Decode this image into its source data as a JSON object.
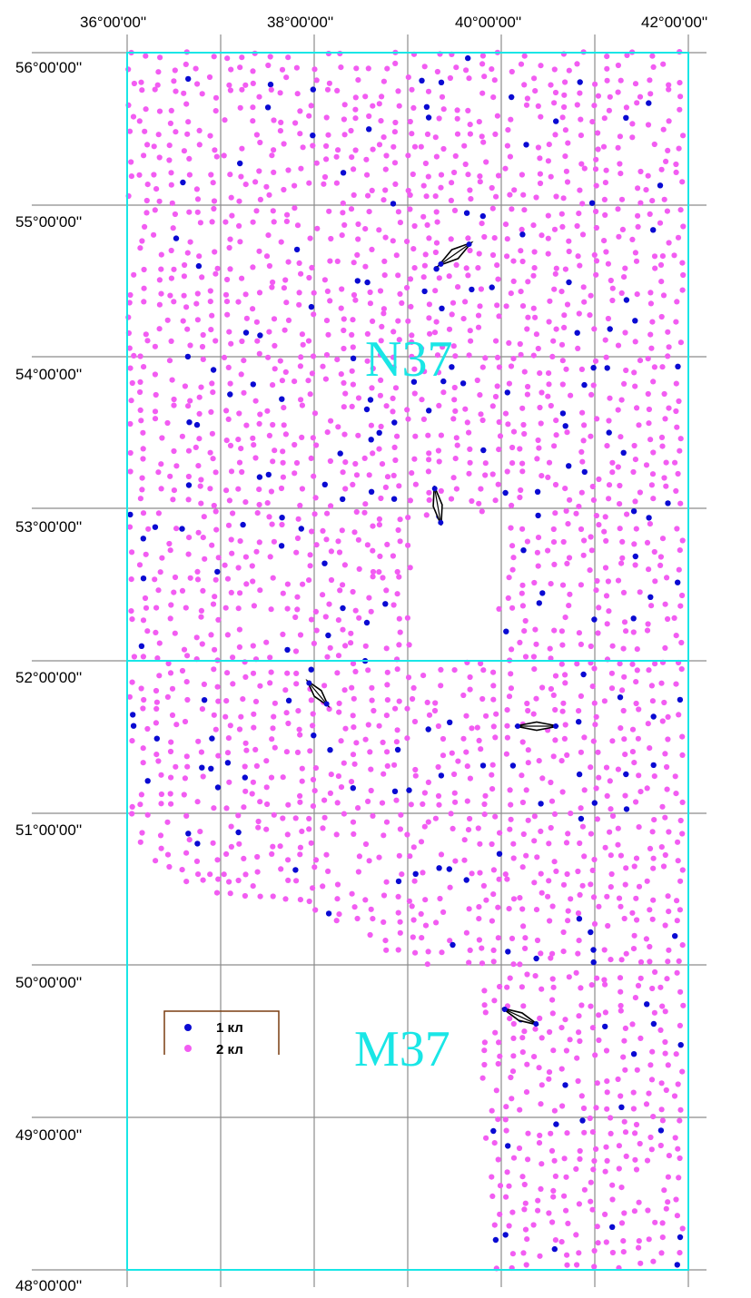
{
  "map": {
    "lon_labels": [
      "36°00'00''",
      "38°00'00''",
      "40°00'00''",
      "42°00'00''"
    ],
    "lat_labels": [
      "56°00'00''",
      "55°00'00''",
      "54°00'00''",
      "53°00'00''",
      "52°00'00''",
      "51°00'00''",
      "50°00'00''",
      "49°00'00''",
      "48°00'00''"
    ],
    "sheet_labels": [
      "N37",
      "M37"
    ],
    "legend": [
      {
        "label": "1 кл",
        "color": "#0a0ad2"
      },
      {
        "label": "2 кл",
        "color": "#f25cf2"
      }
    ],
    "colors": {
      "grid": "#8c8c8c",
      "sheet_frame": "#19e6e6",
      "sheet_label": "#19e6e6",
      "legend_frame": "#7a3d10",
      "class1_point": "#0a0ad2",
      "class2_point": "#f25cf2",
      "station_symbol": "#000000"
    },
    "point_classes": [
      "1 кл",
      "2 кл"
    ]
  }
}
